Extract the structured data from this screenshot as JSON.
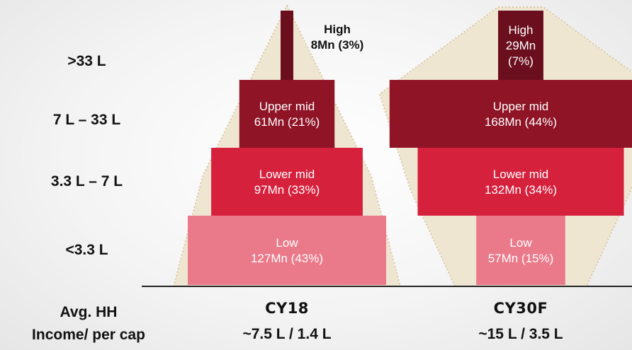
{
  "chart_data": {
    "type": "bar",
    "chart_subtype": "stacked income pyramid",
    "income_bands": [
      ">33 L",
      "7 L – 33 L",
      "3.3 L – 7 L",
      "<3.3 L"
    ],
    "series": [
      {
        "name": "CY18",
        "avg_income": "~7.5 L / 1.4 L",
        "segments": [
          {
            "category": "High",
            "value": 8,
            "share_pct": 3,
            "label_line1": "High",
            "label_line2": "8Mn (3%)",
            "color": "#6b0f1e"
          },
          {
            "category": "Upper mid",
            "value": 61,
            "share_pct": 21,
            "label_line1": "Upper mid",
            "label_line2": "61Mn (21%)",
            "color": "#8e1426"
          },
          {
            "category": "Lower mid",
            "value": 97,
            "share_pct": 33,
            "label_line1": "Lower mid",
            "label_line2": "97Mn (33%)",
            "color": "#d6213d"
          },
          {
            "category": "Low",
            "value": 127,
            "share_pct": 43,
            "label_line1": "Low",
            "label_line2": "127Mn (43%)",
            "color": "#ea7a8a"
          }
        ]
      },
      {
        "name": "CY30F",
        "avg_income": "~15 L / 3.5 L",
        "segments": [
          {
            "category": "High",
            "value": 29,
            "share_pct": 7,
            "label_line1": "High",
            "label_line2": "29Mn",
            "label_line3": "(7%)",
            "color": "#6b0f1e"
          },
          {
            "category": "Upper mid",
            "value": 168,
            "share_pct": 44,
            "label_line1": "Upper mid",
            "label_line2": "168Mn (44%)",
            "color": "#8e1426"
          },
          {
            "category": "Lower mid",
            "value": 132,
            "share_pct": 34,
            "label_line1": "Lower mid",
            "label_line2": "132Mn (34%)",
            "color": "#d6213d"
          },
          {
            "category": "Low",
            "value": 57,
            "share_pct": 15,
            "label_line1": "Low",
            "label_line2": "57Mn (15%)",
            "color": "#ea7a8a"
          }
        ]
      }
    ],
    "footer_label_line1": "Avg. HH",
    "footer_label_line2": "Income/ per cap",
    "colors": {
      "high": "#6b0f1e",
      "upper_mid": "#8e1426",
      "lower_mid": "#d6213d",
      "low": "#ea7a8a",
      "silhouette": "#efe6d2"
    }
  }
}
